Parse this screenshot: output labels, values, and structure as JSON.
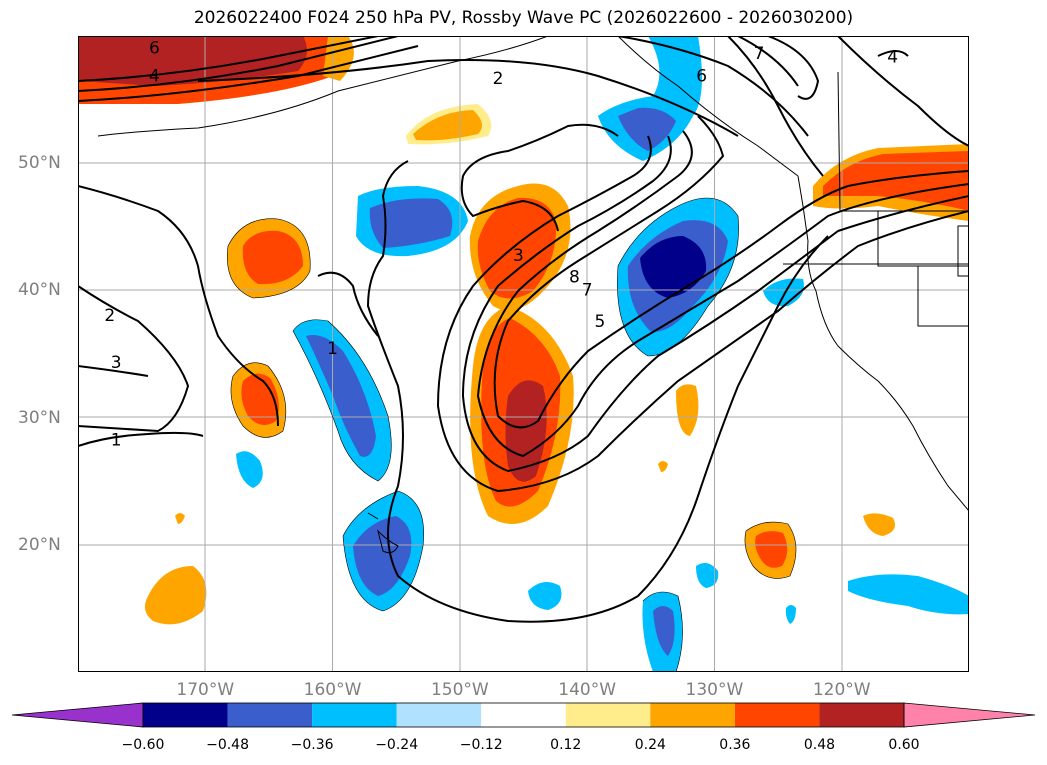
{
  "title": "2026022400 F024 250 hPa PV, Rossby Wave PC (2026022600 - 2026030200)",
  "chart_data": {
    "type": "map",
    "variable": "250 hPa PV with Rossby Wave PC shading",
    "lat_ticks": [
      {
        "lat": 50,
        "label": "50°N"
      },
      {
        "lat": 40,
        "label": "40°N"
      },
      {
        "lat": 30,
        "label": "30°N"
      },
      {
        "lat": 20,
        "label": "20°N"
      }
    ],
    "lon_ticks": [
      {
        "lon": -170,
        "label": "170°W"
      },
      {
        "lon": -160,
        "label": "160°W"
      },
      {
        "lon": -150,
        "label": "150°W"
      },
      {
        "lon": -140,
        "label": "140°W"
      },
      {
        "lon": -130,
        "label": "130°W"
      },
      {
        "lon": -120,
        "label": "120°W"
      }
    ],
    "extent": {
      "lon_min": -180,
      "lon_max": -110,
      "lat_min": 10,
      "lat_max": 60
    },
    "colorbar": {
      "levels": [
        -0.6,
        -0.48,
        -0.36,
        -0.24,
        -0.12,
        0.12,
        0.24,
        0.36,
        0.48,
        0.6
      ],
      "tick_labels": [
        "−0.60",
        "−0.48",
        "−0.36",
        "−0.24",
        "−0.12",
        "0.12",
        "0.24",
        "0.36",
        "0.48",
        "0.60"
      ],
      "colors": [
        "#9932cc",
        "#00008b",
        "#3a5fcd",
        "#00bfff",
        "#b0e2ff",
        "#ffffff",
        "#ffec8b",
        "#ffa500",
        "#ff4500",
        "#b22222",
        "#ff82ab"
      ],
      "extend": "both"
    },
    "contour_labels": [
      {
        "text": "6",
        "lon": -174,
        "lat": 59
      },
      {
        "text": "4",
        "lon": -174,
        "lat": 56.8
      },
      {
        "text": "2",
        "lon": -147,
        "lat": 56.6
      },
      {
        "text": "6",
        "lon": -131,
        "lat": 56.8
      },
      {
        "text": "7",
        "lon": -126.5,
        "lat": 58.6
      },
      {
        "text": "4",
        "lon": -116,
        "lat": 58.3
      },
      {
        "text": "2",
        "lon": -177.5,
        "lat": 38
      },
      {
        "text": "3",
        "lon": -177,
        "lat": 34.3
      },
      {
        "text": "1",
        "lon": -177,
        "lat": 28.2
      },
      {
        "text": "3",
        "lon": -145.4,
        "lat": 42.7
      },
      {
        "text": "8",
        "lon": -141,
        "lat": 41
      },
      {
        "text": "7",
        "lon": -140,
        "lat": 40
      },
      {
        "text": "5",
        "lon": -139,
        "lat": 37.5
      },
      {
        "text": "1",
        "lon": -160,
        "lat": 35.4
      }
    ]
  }
}
